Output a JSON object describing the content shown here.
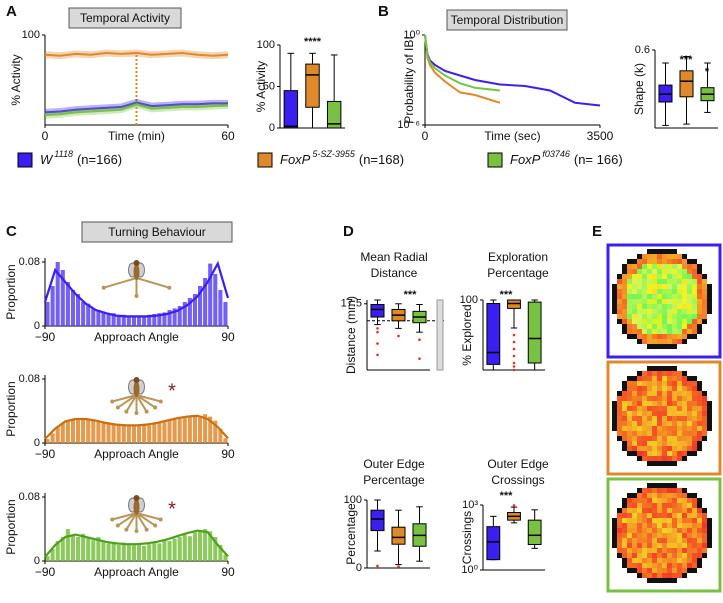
{
  "chart_data": [
    {
      "type": "line",
      "panel": "A",
      "title": "Temporal Activity",
      "xlabel": "Time (min)",
      "ylabel": "% Activity",
      "x": [
        0,
        5,
        10,
        15,
        20,
        25,
        30,
        35,
        40,
        45,
        50,
        55,
        60
      ],
      "xlim": [
        0,
        60
      ],
      "xticks": [
        0,
        60
      ],
      "ylim": [
        0,
        100
      ],
      "yticks": [
        100
      ],
      "marker_x": 30,
      "marker_color": "#d98a1e",
      "series": [
        {
          "color": "#e0892b",
          "values": [
            78,
            77,
            79,
            78,
            80,
            79,
            80,
            78,
            79,
            80,
            78,
            77,
            78
          ]
        },
        {
          "color": "#3b1ff0",
          "values": [
            14,
            15,
            17,
            18,
            19,
            20,
            25,
            21,
            22,
            23,
            23,
            24,
            24
          ]
        },
        {
          "color": "#79c142",
          "values": [
            11,
            12,
            14,
            15,
            16,
            17,
            23,
            18,
            19,
            20,
            20,
            21,
            22
          ]
        }
      ]
    },
    {
      "type": "box",
      "ylabel": "% Activity",
      "ylim": [
        0,
        100
      ],
      "yticks": [
        0,
        50,
        100
      ],
      "annotations": [
        "****"
      ],
      "series": [
        {
          "color": "#3b1ff0",
          "values": [
            0,
            0,
            2,
            45,
            90
          ]
        },
        {
          "color": "#e0892b",
          "values": [
            0,
            25,
            64,
            77,
            90
          ]
        },
        {
          "color": "#79c142",
          "values": [
            0,
            0,
            5,
            32,
            88
          ]
        }
      ]
    },
    {
      "type": "line",
      "panel": "B",
      "title": "Temporal Distribution",
      "xlabel": "Time (sec)",
      "ylabel": "Probability of IBI",
      "x": [
        0,
        50,
        100,
        200,
        400,
        700,
        1000,
        1500,
        2000,
        2500,
        3000,
        3500
      ],
      "xlim": [
        0,
        3500
      ],
      "xticks": [
        0,
        3500
      ],
      "ylog": true,
      "ylim": [
        1e-06,
        1
      ],
      "yticks": [
        {
          "value": 1,
          "label": "10⁰"
        },
        {
          "value": 1e-06,
          "label": "10⁻⁶"
        }
      ],
      "series": [
        {
          "color": "#3b1ff0",
          "values": [
            1,
            0.05,
            0.02,
            0.01,
            0.004,
            0.002,
            0.001,
            0.0005,
            0.0004,
            0.0002,
            3e-05,
            2e-05
          ]
        },
        {
          "color": "#e0892b",
          "values": [
            1,
            0.03,
            0.01,
            0.003,
            0.0008,
            0.00015,
            0.0001,
            3e-05,
            null,
            null,
            null,
            null
          ]
        },
        {
          "color": "#79c142",
          "values": [
            1,
            0.04,
            0.015,
            0.006,
            0.002,
            0.0006,
            0.0003,
            0.0002,
            null,
            null,
            null,
            null
          ]
        }
      ]
    },
    {
      "type": "box",
      "ylabel": "Shape (k)",
      "ylim": [
        0,
        0.6
      ],
      "yticks": [
        0.6
      ],
      "annotations": [
        "***",
        "*"
      ],
      "series": [
        {
          "color": "#3b1ff0",
          "values": [
            0.02,
            0.2,
            0.26,
            0.33,
            0.5
          ]
        },
        {
          "color": "#e0892b",
          "values": [
            0.03,
            0.24,
            0.36,
            0.44,
            0.55
          ]
        },
        {
          "color": "#79c142",
          "values": [
            0.12,
            0.21,
            0.26,
            0.31,
            0.5
          ]
        }
      ]
    },
    {
      "type": "histogram",
      "panel": "C",
      "title": "Turning Behaviour",
      "xlabel": "Approach Angle",
      "ylabel": "Proportion",
      "color": "#5a45f0",
      "line_color": "#3b1ff0",
      "bins": [
        -90,
        -85,
        -80,
        -75,
        -70,
        -65,
        -60,
        -55,
        -50,
        -45,
        -40,
        -35,
        -30,
        -25,
        -20,
        -15,
        -10,
        -5,
        0,
        5,
        10,
        15,
        20,
        25,
        30,
        35,
        40,
        45,
        50,
        55,
        60,
        65,
        70,
        75,
        80,
        85,
        90
      ],
      "values": [
        0.03,
        0.05,
        0.08,
        0.07,
        0.055,
        0.045,
        0.04,
        0.03,
        0.028,
        0.022,
        0.02,
        0.018,
        0.015,
        0.016,
        0.013,
        0.014,
        0.012,
        0.013,
        0.012,
        0.013,
        0.014,
        0.015,
        0.016,
        0.017,
        0.02,
        0.022,
        0.025,
        0.03,
        0.035,
        0.04,
        0.05,
        0.06,
        0.078,
        0.065,
        0.045,
        0.03
      ],
      "fit": {
        "x": [
          -90,
          -80,
          -70,
          -60,
          -50,
          -40,
          -30,
          -20,
          -10,
          0,
          10,
          20,
          30,
          40,
          50,
          60,
          70,
          80,
          90
        ],
        "values": [
          0.03,
          0.07,
          0.055,
          0.04,
          0.028,
          0.02,
          0.016,
          0.013,
          0.012,
          0.012,
          0.012,
          0.013,
          0.015,
          0.019,
          0.026,
          0.037,
          0.055,
          0.078,
          0.035
        ]
      },
      "xlim": [
        -90,
        90
      ],
      "xticks": [
        {
          "value": -90,
          "label": "−90"
        },
        90
      ],
      "ylim": [
        0,
        0.085
      ],
      "yticks": [
        0,
        0.08
      ]
    },
    {
      "type": "histogram",
      "xlabel": "Approach Angle",
      "ylabel": "Proportion",
      "annotations": [
        "*"
      ],
      "color": "#e0892b",
      "line_color": "#c96f14",
      "bins": [
        -90,
        -85,
        -80,
        -75,
        -70,
        -65,
        -60,
        -55,
        -50,
        -45,
        -40,
        -35,
        -30,
        -25,
        -20,
        -15,
        -10,
        -5,
        0,
        5,
        10,
        15,
        20,
        25,
        30,
        35,
        40,
        45,
        50,
        55,
        60,
        65,
        70,
        75,
        80,
        85,
        90
      ],
      "values": [
        0.005,
        0.012,
        0.02,
        0.025,
        0.028,
        0.03,
        0.031,
        0.029,
        0.03,
        0.028,
        0.027,
        0.026,
        0.025,
        0.024,
        0.023,
        0.022,
        0.023,
        0.021,
        0.022,
        0.023,
        0.022,
        0.024,
        0.025,
        0.026,
        0.028,
        0.03,
        0.031,
        0.033,
        0.032,
        0.035,
        0.034,
        0.036,
        0.033,
        0.028,
        0.018,
        0.006
      ],
      "fit": {
        "x": [
          -90,
          -80,
          -70,
          -60,
          -50,
          -40,
          -30,
          -20,
          -10,
          0,
          10,
          20,
          30,
          40,
          50,
          60,
          70,
          80,
          90
        ],
        "values": [
          0.005,
          0.018,
          0.027,
          0.03,
          0.03,
          0.028,
          0.025,
          0.023,
          0.022,
          0.022,
          0.023,
          0.025,
          0.028,
          0.031,
          0.033,
          0.034,
          0.03,
          0.02,
          0.006
        ]
      },
      "xlim": [
        -90,
        90
      ],
      "xticks": [
        {
          "value": -90,
          "label": "−90"
        },
        90
      ],
      "ylim": [
        0,
        0.085
      ],
      "yticks": [
        0,
        0.08
      ]
    },
    {
      "type": "histogram",
      "xlabel": "Approach Angle",
      "ylabel": "Proportion",
      "annotations": [
        "*"
      ],
      "color": "#79c142",
      "line_color": "#4e9f1c",
      "bins": [
        -90,
        -85,
        -80,
        -75,
        -70,
        -65,
        -60,
        -55,
        -50,
        -45,
        -40,
        -35,
        -30,
        -25,
        -20,
        -15,
        -10,
        -5,
        0,
        5,
        10,
        15,
        20,
        25,
        30,
        35,
        40,
        45,
        50,
        55,
        60,
        65,
        70,
        75,
        80,
        85,
        90
      ],
      "values": [
        0.006,
        0.015,
        0.025,
        0.03,
        0.04,
        0.032,
        0.03,
        0.034,
        0.028,
        0.026,
        0.03,
        0.025,
        0.022,
        0.024,
        0.02,
        0.023,
        0.021,
        0.02,
        0.022,
        0.019,
        0.021,
        0.024,
        0.022,
        0.026,
        0.025,
        0.028,
        0.03,
        0.033,
        0.031,
        0.036,
        0.038,
        0.04,
        0.037,
        0.03,
        0.02,
        0.008
      ],
      "fit": {
        "x": [
          -90,
          -80,
          -70,
          -60,
          -50,
          -40,
          -30,
          -20,
          -10,
          0,
          10,
          20,
          30,
          40,
          50,
          60,
          70,
          80,
          90
        ],
        "values": [
          0.005,
          0.02,
          0.03,
          0.033,
          0.03,
          0.027,
          0.024,
          0.022,
          0.021,
          0.021,
          0.022,
          0.024,
          0.027,
          0.031,
          0.035,
          0.038,
          0.036,
          0.02,
          0.006
        ]
      },
      "xlim": [
        -90,
        90
      ],
      "xticks": [
        {
          "value": -90,
          "label": "−90"
        },
        90
      ],
      "ylim": [
        0,
        0.085
      ],
      "yticks": [
        0,
        0.08
      ]
    },
    {
      "type": "box",
      "panel": "D",
      "title": [
        "Mean Radial",
        "Distance"
      ],
      "ylabel": "Distance (mm)",
      "ylim": [
        0,
        18.5
      ],
      "yticks": [
        17.5
      ],
      "annotations": [
        "***"
      ],
      "reference_line": 13,
      "series": [
        {
          "color": "#3b1ff0",
          "values": [
            12,
            14,
            16,
            17.3,
            18.5
          ],
          "outliers": [
            11,
            10,
            7,
            4
          ]
        },
        {
          "color": "#e0892b",
          "values": [
            11,
            13,
            14.5,
            16,
            17.5
          ],
          "outliers": [
            9
          ]
        },
        {
          "color": "#79c142",
          "values": [
            10,
            12.5,
            14,
            15.5,
            17.3
          ],
          "outliers": [
            8,
            3
          ]
        }
      ]
    },
    {
      "type": "box",
      "title": [
        "Exploration",
        "Percentage"
      ],
      "ylabel": "% Explored",
      "ylim": [
        0,
        100
      ],
      "yticks": [
        100
      ],
      "annotations": [
        "***"
      ],
      "series": [
        {
          "color": "#3b1ff0",
          "values": [
            0,
            8,
            25,
            95,
            100
          ]
        },
        {
          "color": "#e0892b",
          "values": [
            60,
            88,
            95,
            100,
            100
          ],
          "outliers": [
            50,
            40,
            30,
            20,
            10,
            5,
            0
          ]
        },
        {
          "color": "#79c142",
          "values": [
            0,
            10,
            45,
            97,
            100
          ]
        }
      ]
    },
    {
      "type": "box",
      "title": [
        "Outer Edge",
        "Percentage"
      ],
      "ylabel": "Percentage",
      "ylim": [
        0,
        100
      ],
      "yticks": [
        0,
        100
      ],
      "series": [
        {
          "color": "#3b1ff0",
          "values": [
            25,
            55,
            72,
            85,
            100
          ],
          "outliers": [
            3
          ]
        },
        {
          "color": "#e0892b",
          "values": [
            5,
            35,
            45,
            60,
            85
          ],
          "outliers": [
            2
          ]
        },
        {
          "color": "#79c142",
          "values": [
            10,
            32,
            48,
            65,
            90
          ]
        }
      ]
    },
    {
      "type": "box",
      "title": [
        "Outer Edge",
        "Crossings"
      ],
      "ylabel": "Crossings",
      "ylog": true,
      "ylim": [
        1,
        1000
      ],
      "yticks": [
        {
          "value": 1,
          "label": "10⁰"
        },
        {
          "value": 1000,
          "label": "10³"
        }
      ],
      "annotations": [
        "***"
      ],
      "series": [
        {
          "color": "#3b1ff0",
          "values": [
            3,
            3,
            20,
            100,
            300
          ]
        },
        {
          "color": "#e0892b",
          "values": [
            150,
            200,
            300,
            450,
            800
          ],
          "outliers": [
            950
          ]
        },
        {
          "color": "#79c142",
          "values": [
            10,
            15,
            40,
            200,
            600
          ]
        }
      ]
    },
    {
      "type": "heatmap",
      "panel": "E",
      "frame_colors": [
        "#3b1ff0",
        "#e0892b",
        "#79c142"
      ]
    }
  ],
  "legend": [
    {
      "name": "W",
      "sup": "1118",
      "n": "(n=166)",
      "color": "#3b1ff0"
    },
    {
      "name": "FoxP",
      "sup": "5-SZ-3955",
      "n": "(n=168)",
      "color": "#e0892b"
    },
    {
      "name": "FoxP",
      "sup": "f03746",
      "n": "(n= 166)",
      "color": "#79c142"
    }
  ]
}
